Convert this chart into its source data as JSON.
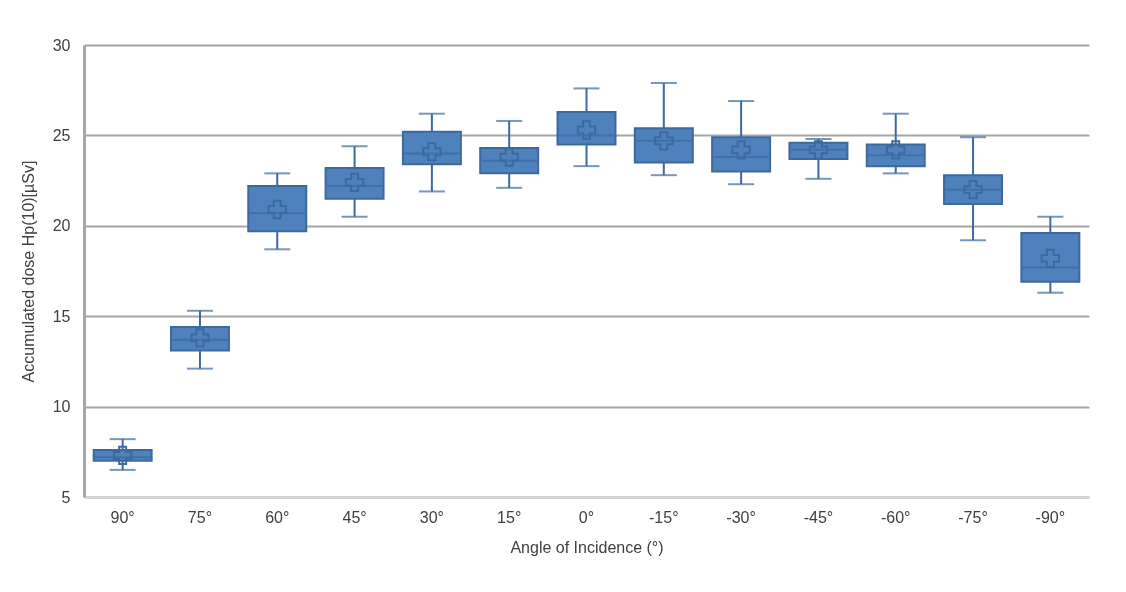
{
  "chart_data": {
    "type": "box",
    "xlabel": "Angle of  Incidence (°)",
    "ylabel": "Accumulated dose Hp(10)[µSv]",
    "categories": [
      "90°",
      "75°",
      "60°",
      "45°",
      "30°",
      "15°",
      "0°",
      "-15°",
      "-30°",
      "-45°",
      "-60°",
      "-75°",
      "-90°"
    ],
    "color": "#4f81bd",
    "marker": "cross",
    "grid": "y",
    "ylim": [
      5,
      30
    ],
    "yticks": [
      5,
      10,
      15,
      20,
      25,
      30
    ],
    "boxes": [
      {
        "low": 6.5,
        "q1": 7.0,
        "median": 7.2,
        "q3": 7.6,
        "high": 8.2,
        "mean": 7.3
      },
      {
        "low": 12.1,
        "q1": 13.1,
        "median": 13.7,
        "q3": 14.4,
        "high": 15.3,
        "mean": 13.8
      },
      {
        "low": 18.7,
        "q1": 19.7,
        "median": 20.7,
        "q3": 22.2,
        "high": 22.9,
        "mean": 20.9
      },
      {
        "low": 20.5,
        "q1": 21.5,
        "median": 22.2,
        "q3": 23.2,
        "high": 24.4,
        "mean": 22.4
      },
      {
        "low": 21.9,
        "q1": 23.4,
        "median": 24.0,
        "q3": 25.2,
        "high": 26.2,
        "mean": 24.1
      },
      {
        "low": 22.1,
        "q1": 22.9,
        "median": 23.6,
        "q3": 24.3,
        "high": 25.8,
        "mean": 23.8
      },
      {
        "low": 23.3,
        "q1": 24.5,
        "median": 25.0,
        "q3": 26.3,
        "high": 27.6,
        "mean": 25.3
      },
      {
        "low": 22.8,
        "q1": 23.5,
        "median": 24.7,
        "q3": 25.4,
        "high": 27.9,
        "mean": 24.7
      },
      {
        "low": 22.3,
        "q1": 23.0,
        "median": 23.8,
        "q3": 24.9,
        "high": 26.9,
        "mean": 24.2
      },
      {
        "low": 22.6,
        "q1": 23.7,
        "median": 24.2,
        "q3": 24.6,
        "high": 24.8,
        "mean": 24.2
      },
      {
        "low": 22.9,
        "q1": 23.3,
        "median": 23.9,
        "q3": 24.5,
        "high": 26.2,
        "mean": 24.2
      },
      {
        "low": 19.2,
        "q1": 21.2,
        "median": 22.0,
        "q3": 22.8,
        "high": 24.9,
        "mean": 22.0
      },
      {
        "low": 16.3,
        "q1": 16.9,
        "median": 17.7,
        "q3": 19.6,
        "high": 20.5,
        "mean": 18.2
      }
    ]
  }
}
